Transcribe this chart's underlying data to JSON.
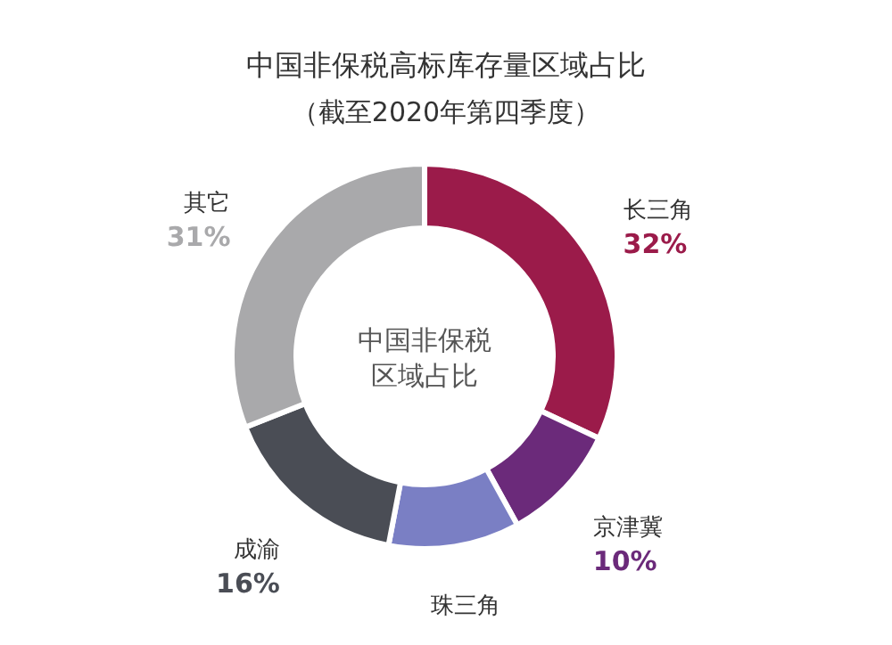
{
  "chart_data": {
    "type": "donut",
    "title": "中国非保税高标库存量区域占比",
    "subtitle": "（截至2020年第四季度）",
    "categories": [
      "长三角",
      "京津冀",
      "珠三角",
      "成渝",
      "其它"
    ],
    "values": [
      32,
      10,
      11,
      16,
      31
    ],
    "colors": [
      "#9b1b4a",
      "#6b2a7a",
      "#7a7fc4",
      "#4a4d55",
      "#a9a9ab"
    ],
    "value_labels": [
      "32%",
      "10%",
      null,
      "16%",
      "31%"
    ],
    "annotations": [
      "中国非保税",
      "区域占比"
    ]
  }
}
